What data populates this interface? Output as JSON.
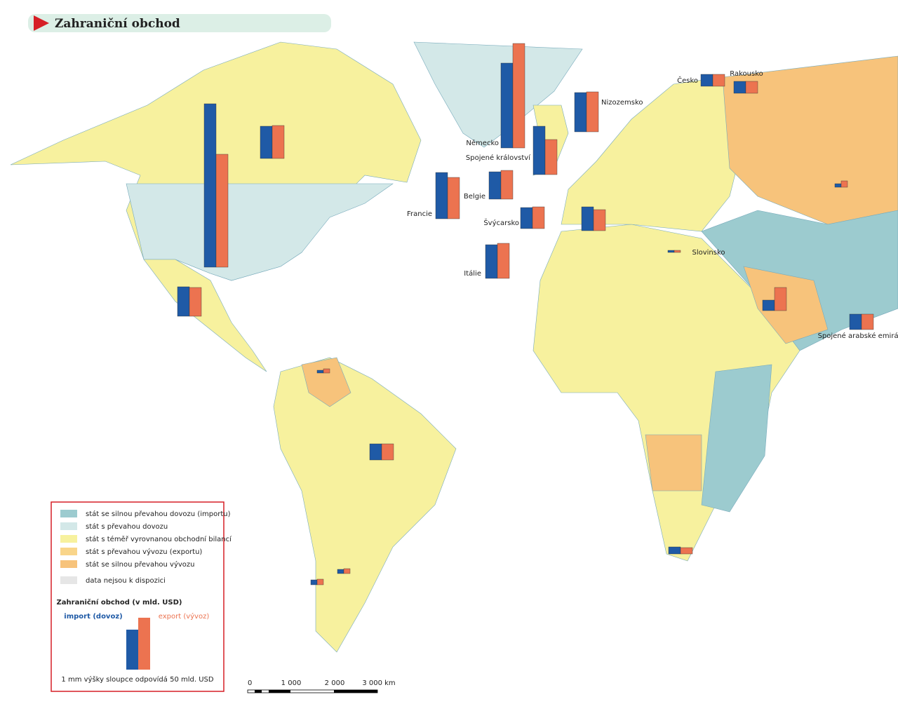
{
  "header": {
    "title": "Zahraniční obchod"
  },
  "chart_data": {
    "type": "map-bars",
    "title": "Zahraniční obchod (v mld. USD)",
    "unit_note": "1 mm výšky sloupce odpovídá 50 mld. USD",
    "series": [
      {
        "name": "import (dovoz)",
        "color": "#1f5aa6"
      },
      {
        "name": "export (vývoz)",
        "color": "#ec7350"
      }
    ],
    "countries": [
      {
        "name": null,
        "import": 460,
        "export": 470
      },
      {
        "name": null,
        "import": 2330,
        "export": 1610
      },
      {
        "name": null,
        "import": 420,
        "export": 410
      },
      {
        "name": "Německo",
        "import": 1210,
        "export": 1490
      },
      {
        "name": "Spojené království",
        "import": 690,
        "export": 500
      },
      {
        "name": "Nizozemsko",
        "import": 560,
        "export": 570
      },
      {
        "name": "Belgie",
        "import": 390,
        "export": 410
      },
      {
        "name": "Francie",
        "import": 660,
        "export": 590
      },
      {
        "name": "Švýcarsko",
        "import": 300,
        "export": 310
      },
      {
        "name": "Itálie",
        "import": 480,
        "export": 500
      },
      {
        "name": "Česko",
        "import": 170,
        "export": 170
      },
      {
        "name": "Rakousko",
        "import": 170,
        "export": 170
      },
      {
        "name": "Slovinsko",
        "import": 30,
        "export": 30
      },
      {
        "name": "Spojené arabské emiráty",
        "import": 220,
        "export": 220
      },
      {
        "name": null,
        "import": 340,
        "export": 300
      },
      {
        "name": null,
        "import": 230,
        "export": 230
      },
      {
        "name": null,
        "import": 150,
        "export": 330
      },
      {
        "name": null,
        "import": 50,
        "export": 90
      },
      {
        "name": null,
        "import": 100,
        "export": 90
      },
      {
        "name": null,
        "import": 40,
        "export": 60
      },
      {
        "name": null,
        "import": 60,
        "export": 70
      },
      {
        "name": null,
        "import": 70,
        "export": 80
      }
    ]
  },
  "legend": {
    "items": [
      {
        "label": "stát se silnou převahou dovozu (importu)",
        "color": "#9ccbcf"
      },
      {
        "label": "stát s převahou dovozu",
        "color": "#d3e8e8"
      },
      {
        "label": "stát s téměř vyrovnanou obchodní bilancí",
        "color": "#f7f19e"
      },
      {
        "label": "stát s převahou vývozu (exportu)",
        "color": "#f9d58a"
      },
      {
        "label": "stát se silnou převahou vývozu",
        "color": "#f7c37b"
      },
      {
        "label": "data nejsou k dispozici",
        "color": "#e6e6e6"
      }
    ]
  },
  "scale": {
    "labels": [
      "0",
      "1 000",
      "2 000",
      "3 000 km"
    ]
  }
}
